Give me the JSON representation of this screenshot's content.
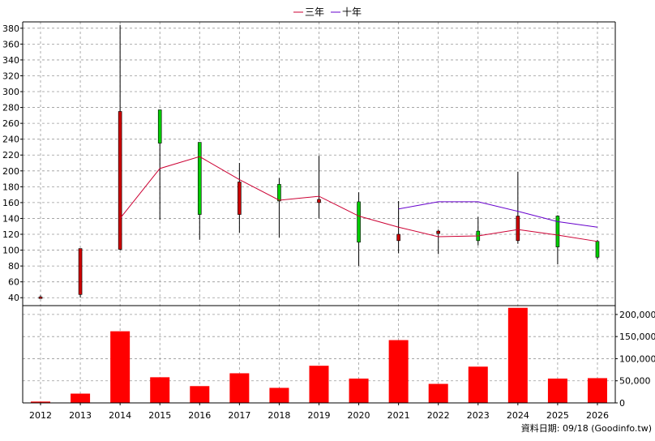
{
  "legend": [
    {
      "label": "三年",
      "color": "#cc0033"
    },
    {
      "label": "十年",
      "color": "#6600cc"
    }
  ],
  "source_note": "資料日期: 09/18  (Goodinfo.tw)",
  "chart_data": [
    {
      "type": "candlestick",
      "x": [
        "2012",
        "2013",
        "2014",
        "2015",
        "2016",
        "2017",
        "2018",
        "2019",
        "2020",
        "2021",
        "2022",
        "2023",
        "2024",
        "2025",
        "2026"
      ],
      "ylim": [
        30,
        388
      ],
      "yticks": [
        40,
        60,
        80,
        100,
        120,
        140,
        160,
        180,
        200,
        220,
        240,
        260,
        280,
        300,
        320,
        340,
        360,
        380
      ],
      "grid": true,
      "candles": [
        {
          "x": "2012",
          "open": 41,
          "close": 41,
          "high": 43,
          "low": 39
        },
        {
          "x": "2013",
          "open": 44,
          "close": 102,
          "high": 102,
          "low": 40
        },
        {
          "x": "2014",
          "open": 101,
          "close": 275,
          "high": 384,
          "low": 100
        },
        {
          "x": "2015",
          "open": 277,
          "close": 235,
          "high": 277,
          "low": 138
        },
        {
          "x": "2016",
          "open": 236,
          "close": 145,
          "high": 236,
          "low": 113
        },
        {
          "x": "2017",
          "open": 145,
          "close": 186,
          "high": 210,
          "low": 122
        },
        {
          "x": "2018",
          "open": 183,
          "close": 162,
          "high": 191,
          "low": 116
        },
        {
          "x": "2019",
          "open": 160,
          "close": 164,
          "high": 219,
          "low": 140
        },
        {
          "x": "2020",
          "open": 161,
          "close": 110,
          "high": 173,
          "low": 80
        },
        {
          "x": "2021",
          "open": 112,
          "close": 120,
          "high": 162,
          "low": 96
        },
        {
          "x": "2022",
          "open": 121,
          "close": 124,
          "high": 126,
          "low": 95
        },
        {
          "x": "2023",
          "open": 124,
          "close": 112,
          "high": 142,
          "low": 106
        },
        {
          "x": "2024",
          "open": 112,
          "close": 143,
          "high": 199,
          "low": 108
        },
        {
          "x": "2025",
          "open": 143,
          "close": 104,
          "high": 144,
          "low": 82
        },
        {
          "x": "2026",
          "open": 111,
          "close": 91,
          "high": 113,
          "low": 88
        }
      ],
      "rising_color": "#cc0000",
      "falling_color": "#00cc00",
      "series": [
        {
          "name": "三年",
          "color": "#cc0033",
          "x": [
            "2014",
            "2015",
            "2016",
            "2017",
            "2018",
            "2019",
            "2020",
            "2021",
            "2022",
            "2023",
            "2024",
            "2025",
            "2026"
          ],
          "values": [
            140,
            203,
            218,
            189,
            163,
            168,
            143,
            129,
            117,
            118,
            126,
            119,
            111
          ]
        },
        {
          "name": "十年",
          "color": "#6600cc",
          "x": [
            "2021",
            "2022",
            "2023",
            "2024",
            "2025",
            "2026"
          ],
          "values": [
            152,
            161,
            161,
            149,
            136,
            129
          ]
        }
      ]
    },
    {
      "type": "bar",
      "categories": [
        "2012",
        "2013",
        "2014",
        "2015",
        "2016",
        "2017",
        "2018",
        "2019",
        "2020",
        "2021",
        "2022",
        "2023",
        "2024",
        "2025",
        "2026"
      ],
      "values": [
        3000,
        21000,
        162000,
        58000,
        38000,
        67000,
        34000,
        84000,
        55000,
        142000,
        43000,
        82000,
        215000,
        55000,
        56000
      ],
      "ylim": [
        0,
        220000
      ],
      "yticks": [
        0,
        50000,
        100000,
        150000,
        200000
      ],
      "ytick_labels": [
        "0",
        "50,000",
        "100,000",
        "150,000",
        "200,000"
      ],
      "color": "#ff0000",
      "grid": true
    }
  ]
}
